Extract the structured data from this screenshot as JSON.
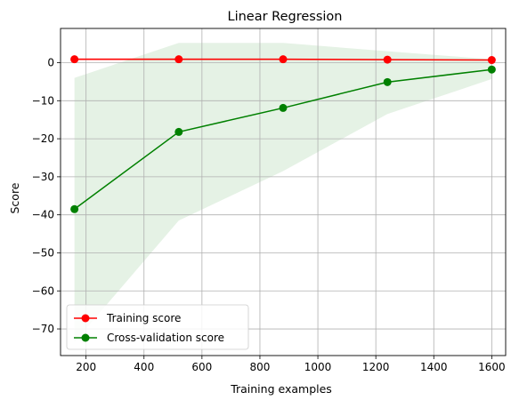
{
  "chart_data": {
    "type": "line",
    "title": "Linear Regression",
    "xlabel": "Training examples",
    "ylabel": "Score",
    "xlim": [
      112,
      1648
    ],
    "ylim": [
      -77,
      9
    ],
    "x_ticks": [
      200,
      400,
      600,
      800,
      1000,
      1200,
      1400,
      1600
    ],
    "x_tick_labels": [
      "200",
      "400",
      "600",
      "800",
      "1000",
      "1200",
      "1400",
      "1600"
    ],
    "y_ticks": [
      0,
      -10,
      -20,
      -30,
      -40,
      -50,
      -60,
      -70
    ],
    "y_tick_labels": [
      "0",
      "−10",
      "−20",
      "−30",
      "−40",
      "−50",
      "−60",
      "−70"
    ],
    "grid": true,
    "legend_position": "lower-left",
    "x": [
      160,
      520,
      880,
      1240,
      1600
    ],
    "series": [
      {
        "name": "Training score",
        "color": "#ff0000",
        "marker": "circle",
        "values": [
          0.9,
          0.9,
          0.9,
          0.8,
          0.7
        ],
        "band_lower": [
          0.5,
          0.6,
          0.6,
          0.6,
          0.6
        ],
        "band_upper": [
          1.2,
          1.2,
          1.1,
          1.0,
          0.9
        ],
        "band_color": "#ff0000"
      },
      {
        "name": "Cross-validation score",
        "color": "#008000",
        "marker": "circle",
        "values": [
          -38.5,
          -18.2,
          -11.9,
          -5.1,
          -1.8
        ],
        "band_lower": [
          -73.5,
          -41.5,
          -28.5,
          -13.5,
          -4.3
        ],
        "band_upper": [
          -4.0,
          5.2,
          5.2,
          3.0,
          0.9
        ],
        "band_color": "#008000"
      }
    ]
  }
}
